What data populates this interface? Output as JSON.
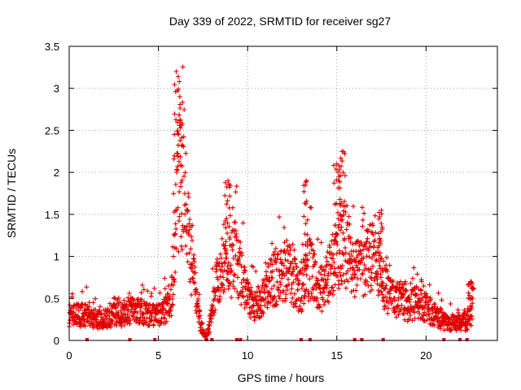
{
  "chart_data": {
    "type": "scatter",
    "title": "Day 339 of 2022, SRMTID for receiver sg27",
    "xlabel": "GPS time / hours",
    "ylabel": "SRMTID / TECUs",
    "xlim": [
      0,
      24
    ],
    "ylim": [
      0,
      3.5
    ],
    "x_ticks": [
      0,
      5,
      10,
      15,
      20
    ],
    "y_ticks": [
      0,
      0.5,
      1,
      1.5,
      2,
      2.5,
      3,
      3.5
    ],
    "x_tick_labels": [
      "0",
      "5",
      "10",
      "15",
      "20"
    ],
    "y_tick_labels": [
      "0",
      "0.5",
      "1",
      "1.5",
      "2",
      "2.5",
      "3",
      "3.5"
    ],
    "grid": true,
    "marker": "+",
    "series_color": "#e00000",
    "series": [
      {
        "name": "SRMTID",
        "envelope_x": [
          0,
          0.5,
          1,
          1.5,
          2,
          2.5,
          3,
          3.5,
          4,
          4.5,
          5,
          5.3,
          5.6,
          5.8,
          6,
          6.2,
          6.4,
          6.6,
          6.8,
          7,
          7.2,
          7.4,
          7.6,
          7.8,
          8,
          8.3,
          8.6,
          9,
          9.3,
          9.6,
          10,
          10.3,
          10.6,
          11,
          11.3,
          11.6,
          12,
          12.3,
          12.6,
          13,
          13.3,
          13.6,
          14,
          14.3,
          14.6,
          15,
          15.3,
          15.6,
          16,
          16.3,
          16.6,
          17,
          17.3,
          17.6,
          18,
          18.5,
          19,
          19.5,
          20,
          20.5,
          21,
          21.5,
          22,
          22.3,
          22.6
        ],
        "envelope_y": [
          0.3,
          0.3,
          0.3,
          0.25,
          0.25,
          0.3,
          0.3,
          0.35,
          0.35,
          0.3,
          0.3,
          0.35,
          0.4,
          0.6,
          1.6,
          2.0,
          1.8,
          1.4,
          1.0,
          0.7,
          0.4,
          0.15,
          0.05,
          0.1,
          0.4,
          0.7,
          0.9,
          0.9,
          1.0,
          0.8,
          0.5,
          0.4,
          0.45,
          0.55,
          0.7,
          0.75,
          0.8,
          0.85,
          0.7,
          0.6,
          0.9,
          0.8,
          0.6,
          0.65,
          0.8,
          0.9,
          1.2,
          1.1,
          0.9,
          0.8,
          0.9,
          1.0,
          0.8,
          0.7,
          0.5,
          0.5,
          0.4,
          0.45,
          0.4,
          0.3,
          0.22,
          0.2,
          0.22,
          0.2,
          0.35
        ],
        "peaks": [
          {
            "x": 6.0,
            "y": 3.2
          },
          {
            "x": 6.2,
            "y": 2.9
          },
          {
            "x": 8.9,
            "y": 1.9
          },
          {
            "x": 13.3,
            "y": 1.9
          },
          {
            "x": 15.3,
            "y": 2.25
          },
          {
            "x": 15.0,
            "y": 2.1
          },
          {
            "x": 17.5,
            "y": 1.55
          },
          {
            "x": 22.5,
            "y": 0.7
          }
        ],
        "zero_markers_x": [
          1.0,
          3.4,
          4.8,
          7.7,
          8.0,
          9.4,
          9.6,
          13.0,
          13.5,
          16.0,
          16.4,
          17.6,
          21.0,
          21.9,
          22.3
        ]
      }
    ]
  }
}
